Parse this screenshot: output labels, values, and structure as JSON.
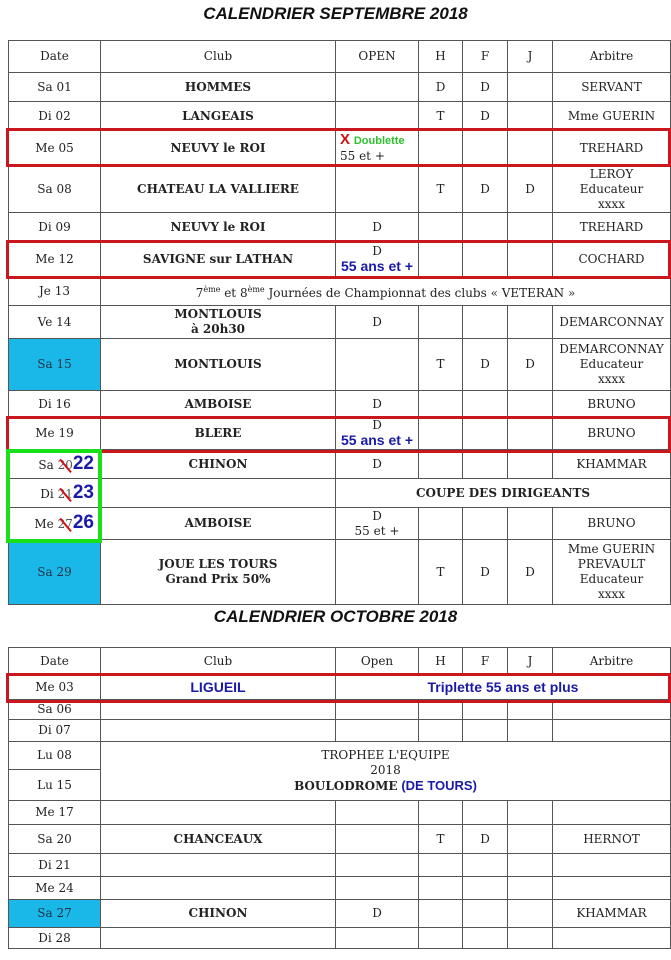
{
  "september": {
    "title": "CALENDRIER SEPTEMBRE 2018",
    "headers": [
      "Date",
      "Club",
      "OPEN",
      "H",
      "F",
      "J",
      "Arbitre"
    ],
    "rows": [
      {
        "date": "Sa 01",
        "club": "HOMMES",
        "open": "",
        "h": "D",
        "f": "D",
        "j": "",
        "arbitre": "SERVANT"
      },
      {
        "date": "Di 02",
        "club": "LANGEAIS",
        "open": "",
        "h": "T",
        "f": "D",
        "j": "",
        "arbitre": "Mme GUERIN"
      },
      {
        "date": "Me 05",
        "club": "NEUVY le ROI",
        "open_mark": "X",
        "open_note": "Doublette",
        "open": "55 et +",
        "h": "",
        "f": "",
        "j": "",
        "arbitre": "TREHARD",
        "boxed": true
      },
      {
        "date": "Sa 08",
        "club": "CHATEAU LA VALLIERE",
        "open": "",
        "h": "T",
        "f": "D",
        "j": "D",
        "arbitre": "LEROY|Educateur|xxxx"
      },
      {
        "date": "Di 09",
        "club": "NEUVY le ROI",
        "open": "D",
        "h": "",
        "f": "",
        "j": "",
        "arbitre": "TREHARD"
      },
      {
        "date": "Me 12",
        "club": "SAVIGNE sur LATHAN",
        "open": "D",
        "open_blue": "55 ans et +",
        "h": "",
        "f": "",
        "j": "",
        "arbitre": "COCHARD",
        "boxed": true
      },
      {
        "date": "Je 13",
        "span_pre": "7",
        "span_sup1": "ème",
        "span_mid": " et 8",
        "span_sup2": "ème",
        "span_post": " Journées de Championnat des clubs « VETERAN »"
      },
      {
        "date": "Ve 14",
        "club": "MONTLOUIS|à 20h30",
        "open": "D",
        "h": "",
        "f": "",
        "j": "",
        "arbitre": "DEMARCONNAY"
      },
      {
        "date": "Sa 15",
        "club": "MONTLOUIS",
        "open": "",
        "h": "T",
        "f": "D",
        "j": "D",
        "arbitre": "DEMARCONNAY|Educateur|xxxx",
        "highlight": true
      },
      {
        "date": "Di 16",
        "club": "AMBOISE",
        "open": "D",
        "h": "",
        "f": "",
        "j": "",
        "arbitre": "BRUNO"
      },
      {
        "date": "Me 19",
        "club": "BLERE",
        "open": "D",
        "open_blue": "55 ans et +",
        "h": "",
        "f": "",
        "j": "",
        "arbitre": "BRUNO",
        "boxed": true
      },
      {
        "date": "Sa",
        "old_day": "20",
        "new_day": "22",
        "club": "CHINON",
        "open": "D",
        "h": "",
        "f": "",
        "j": "",
        "arbitre": "KHAMMAR"
      },
      {
        "date": "Di",
        "old_day": "21",
        "new_day": "23",
        "club": "",
        "wide": "COUPE DES DIRIGEANTS"
      },
      {
        "date": "Me",
        "old_day": "27",
        "new_day": "26",
        "club": "AMBOISE",
        "open": "D|55 et +",
        "h": "",
        "f": "",
        "j": "",
        "arbitre": "BRUNO"
      },
      {
        "date": "Sa 29",
        "club": "JOUE LES TOURS|Grand Prix 50%",
        "open": "",
        "h": "T",
        "f": "D",
        "j": "D",
        "arbitre": "Mme GUERIN|PREVAULT|Educateur|xxxx",
        "highlight": true
      }
    ]
  },
  "october": {
    "title": "CALENDRIER OCTOBRE 2018",
    "headers": [
      "Date",
      "Club",
      "Open",
      "H",
      "F",
      "J",
      "Arbitre"
    ],
    "rows": [
      {
        "date": "Me 03",
        "club_blue": "LIGUEIL",
        "wide_blue": "Triplette 55 ans et plus",
        "boxed": true
      },
      {
        "date": "Sa 06"
      },
      {
        "date": "Di 07"
      },
      {
        "date": "Lu 08",
        "block": [
          "TROPHEE L'EQUIPE",
          "2018",
          "BOULODROME"
        ],
        "block_blue": "(DE TOURS)"
      },
      {
        "date": "Lu 15"
      },
      {
        "date": "Me 17"
      },
      {
        "date": "Sa 20",
        "club": "CHANCEAUX",
        "open": "",
        "h": "T",
        "f": "D",
        "j": "",
        "arbitre": "HERNOT"
      },
      {
        "date": "Di 21"
      },
      {
        "date": "Me 24"
      },
      {
        "date": "Sa 27",
        "club": "CHINON",
        "open": "D",
        "h": "",
        "f": "",
        "j": "",
        "arbitre": "KHAMMAR",
        "highlight": true
      },
      {
        "date": "Di 28"
      }
    ]
  },
  "colors": {
    "box_red": "#c8181e",
    "box_green": "#19e019",
    "highlight": "#1ab8e8",
    "correction_blue": "#1a1aa8",
    "doublette_green": "#2ec02e"
  }
}
